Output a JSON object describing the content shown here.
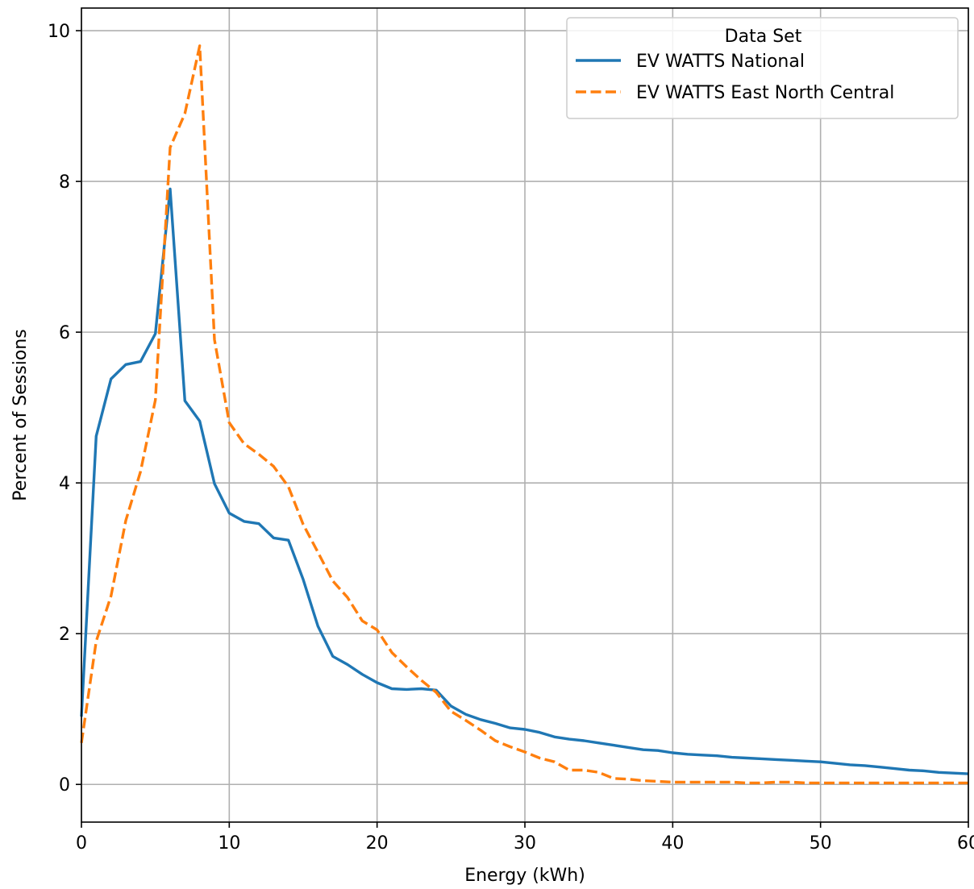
{
  "chart_data": {
    "type": "line",
    "title": "",
    "xlabel": "Energy (kWh)",
    "ylabel": "Percent of Sessions",
    "xlim": [
      0,
      60
    ],
    "ylim": [
      -0.5,
      10.3
    ],
    "xticks": [
      0,
      10,
      20,
      30,
      40,
      50,
      60
    ],
    "yticks": [
      0,
      2,
      4,
      6,
      8,
      10
    ],
    "xtick_labels": [
      "0",
      "10",
      "20",
      "30",
      "40",
      "50",
      "60"
    ],
    "ytick_labels": [
      "0",
      "2",
      "4",
      "6",
      "8",
      "10"
    ],
    "grid": true,
    "legend": {
      "title": "Data Set",
      "position": "top-right"
    },
    "series": [
      {
        "name": "EV WATTS National",
        "color": "#1f77b4",
        "style": "solid",
        "x": [
          0,
          1,
          2,
          3,
          4,
          5,
          6,
          7,
          8,
          9,
          10,
          11,
          12,
          13,
          14,
          15,
          16,
          17,
          18,
          19,
          20,
          21,
          22,
          23,
          24,
          25,
          26,
          27,
          28,
          29,
          30,
          31,
          32,
          33,
          34,
          35,
          36,
          37,
          38,
          39,
          40,
          41,
          42,
          43,
          44,
          45,
          46,
          47,
          48,
          49,
          50,
          51,
          52,
          53,
          54,
          55,
          56,
          57,
          58,
          59,
          60
        ],
        "y": [
          0.9,
          4.62,
          5.38,
          5.57,
          5.61,
          5.98,
          7.9,
          5.09,
          4.82,
          3.99,
          3.6,
          3.49,
          3.46,
          3.27,
          3.24,
          2.72,
          2.1,
          1.7,
          1.59,
          1.46,
          1.35,
          1.27,
          1.26,
          1.27,
          1.25,
          1.04,
          0.93,
          0.86,
          0.81,
          0.75,
          0.73,
          0.69,
          0.63,
          0.6,
          0.58,
          0.55,
          0.52,
          0.49,
          0.46,
          0.45,
          0.42,
          0.4,
          0.39,
          0.38,
          0.36,
          0.35,
          0.34,
          0.33,
          0.32,
          0.31,
          0.3,
          0.28,
          0.26,
          0.25,
          0.23,
          0.21,
          0.19,
          0.18,
          0.16,
          0.15,
          0.14
        ]
      },
      {
        "name": "EV WATTS East North Central",
        "color": "#ff7f0e",
        "style": "dashed",
        "x": [
          0,
          1,
          2,
          3,
          4,
          5,
          6,
          7,
          8,
          9,
          10,
          11,
          12,
          13,
          14,
          15,
          16,
          17,
          18,
          19,
          20,
          21,
          22,
          23,
          24,
          25,
          26,
          27,
          28,
          29,
          30,
          31,
          32,
          33,
          34,
          35,
          36,
          37,
          38,
          39,
          40,
          41,
          42,
          43,
          44,
          45,
          46,
          47,
          48,
          49,
          50,
          51,
          52,
          53,
          54,
          55,
          56,
          57,
          58,
          59,
          60
        ],
        "y": [
          0.55,
          1.9,
          2.5,
          3.5,
          4.15,
          5.1,
          8.45,
          8.9,
          9.8,
          5.9,
          4.8,
          4.52,
          4.38,
          4.22,
          3.95,
          3.45,
          3.08,
          2.7,
          2.48,
          2.17,
          2.05,
          1.75,
          1.56,
          1.38,
          1.22,
          0.97,
          0.85,
          0.72,
          0.58,
          0.5,
          0.43,
          0.35,
          0.3,
          0.19,
          0.19,
          0.16,
          0.08,
          0.07,
          0.05,
          0.04,
          0.03,
          0.03,
          0.03,
          0.03,
          0.03,
          0.02,
          0.02,
          0.03,
          0.03,
          0.02,
          0.02,
          0.02,
          0.02,
          0.02,
          0.02,
          0.02,
          0.02,
          0.02,
          0.02,
          0.02,
          0.02
        ]
      }
    ]
  }
}
